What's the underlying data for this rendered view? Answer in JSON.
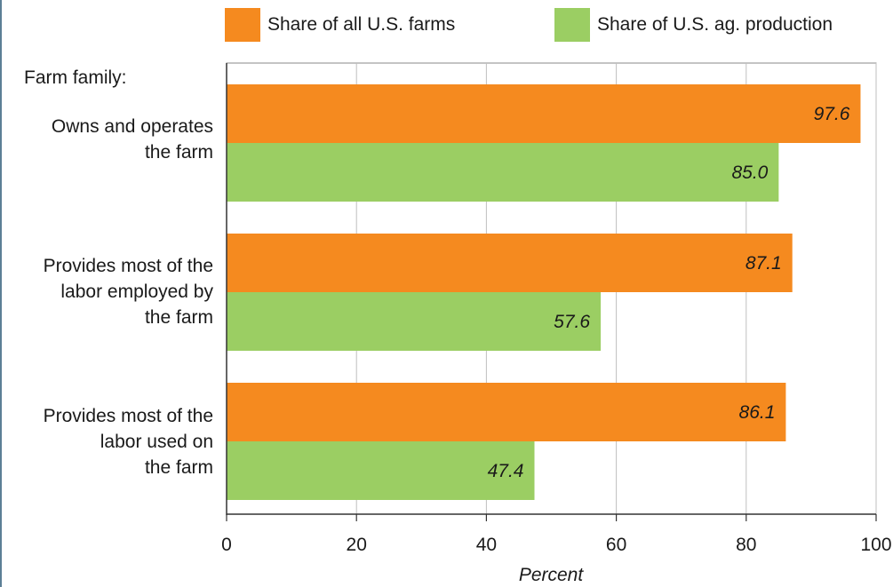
{
  "chart_data": {
    "type": "bar",
    "orientation": "horizontal",
    "group_title": "Farm family:",
    "categories": [
      [
        "Owns and operates",
        "the farm"
      ],
      [
        "Provides most of the",
        "labor employed by",
        "the farm"
      ],
      [
        "Provides most of the",
        "labor used on",
        "the farm"
      ]
    ],
    "series": [
      {
        "name": "Share of all U.S. farms",
        "color": "#f58a1f",
        "values": [
          97.6,
          87.1,
          86.1
        ],
        "labels": [
          "97.6",
          "87.1",
          "86.1"
        ]
      },
      {
        "name": "Share of U.S. ag. production",
        "color": "#9bce63",
        "values": [
          85.0,
          57.6,
          47.4
        ],
        "labels": [
          "85.0",
          "57.6",
          "47.4"
        ]
      }
    ],
    "xlabel": "Percent",
    "xlim": [
      0,
      100
    ],
    "xticks": [
      0,
      20,
      40,
      60,
      80,
      100
    ],
    "grid": true,
    "legend_position": "top"
  }
}
